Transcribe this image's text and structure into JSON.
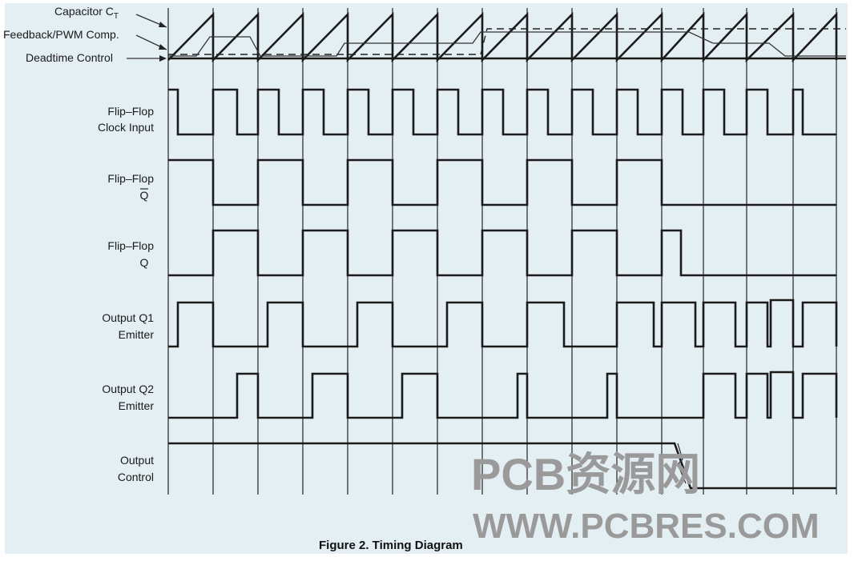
{
  "labels": {
    "capacitor": "Capacitor C",
    "capacitor_sub": "T",
    "feedback": "Feedback/PWM Comp.",
    "deadtime": "Deadtime Control",
    "ff_clock_1": "Flip–Flop",
    "ff_clock_2": "Clock Input",
    "ff_qbar_1": "Flip–Flop",
    "ff_qbar_2": "Q",
    "ff_q_1": "Flip–Flop",
    "ff_q_2": "Q",
    "q1_1": "Output Q1",
    "q1_2": "Emitter",
    "q2_1": "Output Q2",
    "q2_2": "Emitter",
    "oc_1": "Output",
    "oc_2": "Control"
  },
  "caption": "Figure 2. Timing Diagram",
  "watermark": {
    "line1": "PCB资源网",
    "line2": "WWW.PCBRES.COM"
  },
  "colors": {
    "panel": "#e4eff4",
    "ink": "#1a1a1a",
    "watermark": "#9a9a9a"
  }
}
